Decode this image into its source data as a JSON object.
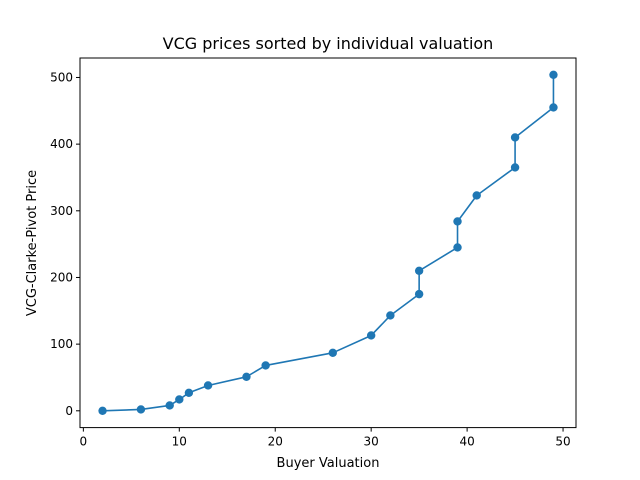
{
  "chart_data": {
    "type": "line",
    "title": "VCG prices sorted by individual valuation",
    "xlabel": "Buyer Valuation",
    "ylabel": "VCG-Clarke-Pivot Price",
    "xlim": [
      -0.35,
      51.35
    ],
    "ylim": [
      -25.2,
      529.2
    ],
    "xticks": [
      0,
      10,
      20,
      30,
      40,
      50
    ],
    "yticks": [
      0,
      100,
      200,
      300,
      400,
      500
    ],
    "grid": false,
    "legend": "none",
    "series": [
      {
        "color": "#1f77b4",
        "marker": "circle",
        "points": [
          [
            2,
            0
          ],
          [
            6,
            2
          ],
          [
            9,
            8
          ],
          [
            10,
            17
          ],
          [
            11,
            27
          ],
          [
            13,
            38
          ],
          [
            17,
            51
          ],
          [
            19,
            68
          ],
          [
            26,
            87
          ],
          [
            30,
            113
          ],
          [
            32,
            143
          ],
          [
            35,
            175
          ],
          [
            35,
            210
          ],
          [
            39,
            245
          ],
          [
            39,
            284
          ],
          [
            41,
            323
          ],
          [
            45,
            365
          ],
          [
            45,
            410
          ],
          [
            49,
            455
          ],
          [
            49,
            504
          ]
        ]
      }
    ]
  }
}
